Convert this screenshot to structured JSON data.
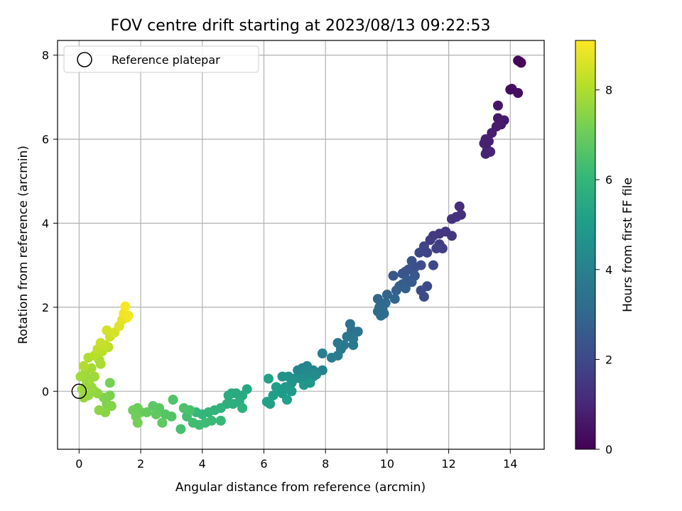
{
  "chart_data": {
    "type": "scatter",
    "title": "FOV centre drift starting at 2023/08/13 09:22:53",
    "xlabel": "Angular distance from reference (arcmin)",
    "ylabel": "Rotation from reference (arcmin)",
    "xlim": [
      -0.7,
      15.1
    ],
    "ylim": [
      -1.38,
      8.35
    ],
    "xticks": [
      0,
      2,
      4,
      6,
      8,
      10,
      12,
      14
    ],
    "yticks": [
      0,
      2,
      4,
      6,
      8
    ],
    "grid": true,
    "legend": {
      "placement": "upper-left",
      "entries": [
        "Reference platepar"
      ]
    },
    "reference_point": {
      "x": 0,
      "y": 0
    },
    "colorbar": {
      "label": "Hours from first FF file",
      "range": [
        0,
        9.1
      ],
      "ticks": [
        0,
        2,
        4,
        6,
        8
      ],
      "colormap": "viridis"
    },
    "points": [
      {
        "x": 14.3,
        "y": 7.85,
        "h": 0.1
      },
      {
        "x": 14.25,
        "y": 7.87,
        "h": 0.12
      },
      {
        "x": 14.35,
        "y": 7.82,
        "h": 0.15
      },
      {
        "x": 14.05,
        "y": 7.2,
        "h": 0.3
      },
      {
        "x": 14.0,
        "y": 7.18,
        "h": 0.32
      },
      {
        "x": 14.25,
        "y": 7.1,
        "h": 0.35
      },
      {
        "x": 13.6,
        "y": 6.8,
        "h": 0.5
      },
      {
        "x": 13.6,
        "y": 6.5,
        "h": 0.6
      },
      {
        "x": 13.8,
        "y": 6.45,
        "h": 0.62
      },
      {
        "x": 13.7,
        "y": 6.35,
        "h": 0.65
      },
      {
        "x": 13.55,
        "y": 6.3,
        "h": 0.7
      },
      {
        "x": 13.4,
        "y": 6.15,
        "h": 0.75
      },
      {
        "x": 13.2,
        "y": 6.0,
        "h": 0.8
      },
      {
        "x": 13.3,
        "y": 5.95,
        "h": 0.82
      },
      {
        "x": 13.15,
        "y": 5.9,
        "h": 0.85
      },
      {
        "x": 13.25,
        "y": 5.75,
        "h": 0.88
      },
      {
        "x": 13.2,
        "y": 5.65,
        "h": 0.9
      },
      {
        "x": 13.35,
        "y": 5.7,
        "h": 0.92
      },
      {
        "x": 12.35,
        "y": 4.4,
        "h": 1.2
      },
      {
        "x": 12.4,
        "y": 4.2,
        "h": 1.22
      },
      {
        "x": 12.25,
        "y": 4.15,
        "h": 1.25
      },
      {
        "x": 12.1,
        "y": 4.1,
        "h": 1.3
      },
      {
        "x": 11.9,
        "y": 3.8,
        "h": 1.4
      },
      {
        "x": 11.7,
        "y": 3.75,
        "h": 1.45
      },
      {
        "x": 12.1,
        "y": 3.7,
        "h": 1.5
      },
      {
        "x": 11.5,
        "y": 3.7,
        "h": 1.55
      },
      {
        "x": 11.4,
        "y": 3.6,
        "h": 1.6
      },
      {
        "x": 11.7,
        "y": 3.5,
        "h": 1.65
      },
      {
        "x": 11.8,
        "y": 3.4,
        "h": 1.7
      },
      {
        "x": 11.6,
        "y": 3.4,
        "h": 1.75
      },
      {
        "x": 11.2,
        "y": 3.45,
        "h": 1.8
      },
      {
        "x": 11.3,
        "y": 3.3,
        "h": 1.85
      },
      {
        "x": 11.05,
        "y": 3.3,
        "h": 1.9
      },
      {
        "x": 11.5,
        "y": 3.0,
        "h": 1.95
      },
      {
        "x": 11.3,
        "y": 2.5,
        "h": 2.0
      },
      {
        "x": 11.1,
        "y": 2.4,
        "h": 2.05
      },
      {
        "x": 11.2,
        "y": 2.25,
        "h": 2.1
      },
      {
        "x": 11.1,
        "y": 3.0,
        "h": 2.15
      },
      {
        "x": 10.9,
        "y": 2.95,
        "h": 2.2
      },
      {
        "x": 10.8,
        "y": 3.1,
        "h": 2.25
      },
      {
        "x": 10.7,
        "y": 2.9,
        "h": 2.3
      },
      {
        "x": 10.6,
        "y": 2.85,
        "h": 2.35
      },
      {
        "x": 10.5,
        "y": 2.8,
        "h": 2.4
      },
      {
        "x": 10.9,
        "y": 2.75,
        "h": 2.45
      },
      {
        "x": 10.2,
        "y": 2.75,
        "h": 2.5
      },
      {
        "x": 10.65,
        "y": 2.65,
        "h": 2.55
      },
      {
        "x": 10.8,
        "y": 2.6,
        "h": 2.6
      },
      {
        "x": 10.5,
        "y": 2.55,
        "h": 2.65
      },
      {
        "x": 10.4,
        "y": 2.5,
        "h": 2.7
      },
      {
        "x": 10.6,
        "y": 2.45,
        "h": 2.75
      },
      {
        "x": 10.3,
        "y": 2.4,
        "h": 2.8
      },
      {
        "x": 10.0,
        "y": 2.3,
        "h": 2.9
      },
      {
        "x": 10.25,
        "y": 2.2,
        "h": 2.95
      },
      {
        "x": 9.7,
        "y": 2.2,
        "h": 3.0
      },
      {
        "x": 9.8,
        "y": 2.1,
        "h": 3.05
      },
      {
        "x": 9.95,
        "y": 2.1,
        "h": 3.08
      },
      {
        "x": 9.75,
        "y": 2.0,
        "h": 3.1
      },
      {
        "x": 9.85,
        "y": 1.95,
        "h": 3.12
      },
      {
        "x": 9.7,
        "y": 1.9,
        "h": 3.15
      },
      {
        "x": 9.9,
        "y": 1.85,
        "h": 3.18
      },
      {
        "x": 9.8,
        "y": 1.8,
        "h": 3.2
      },
      {
        "x": 8.8,
        "y": 1.6,
        "h": 3.4
      },
      {
        "x": 8.85,
        "y": 1.45,
        "h": 3.45
      },
      {
        "x": 9.05,
        "y": 1.42,
        "h": 3.5
      },
      {
        "x": 8.7,
        "y": 1.3,
        "h": 3.55
      },
      {
        "x": 8.9,
        "y": 1.25,
        "h": 3.6
      },
      {
        "x": 8.4,
        "y": 1.15,
        "h": 3.65
      },
      {
        "x": 8.6,
        "y": 1.1,
        "h": 3.7
      },
      {
        "x": 8.9,
        "y": 1.1,
        "h": 3.72
      },
      {
        "x": 8.5,
        "y": 1.0,
        "h": 3.75
      },
      {
        "x": 8.4,
        "y": 0.85,
        "h": 3.8
      },
      {
        "x": 8.2,
        "y": 0.8,
        "h": 3.85
      },
      {
        "x": 7.9,
        "y": 0.9,
        "h": 3.9
      },
      {
        "x": 7.9,
        "y": 0.5,
        "h": 4.0
      },
      {
        "x": 7.6,
        "y": 0.5,
        "h": 4.05
      },
      {
        "x": 7.4,
        "y": 0.6,
        "h": 4.1
      },
      {
        "x": 7.25,
        "y": 0.55,
        "h": 4.15
      },
      {
        "x": 7.1,
        "y": 0.5,
        "h": 4.2
      },
      {
        "x": 7.3,
        "y": 0.45,
        "h": 4.25
      },
      {
        "x": 7.5,
        "y": 0.45,
        "h": 4.3
      },
      {
        "x": 7.7,
        "y": 0.4,
        "h": 4.35
      },
      {
        "x": 7.6,
        "y": 0.35,
        "h": 4.4
      },
      {
        "x": 7.4,
        "y": 0.3,
        "h": 4.45
      },
      {
        "x": 7.2,
        "y": 0.3,
        "h": 4.5
      },
      {
        "x": 7.0,
        "y": 0.3,
        "h": 4.55
      },
      {
        "x": 6.8,
        "y": 0.35,
        "h": 4.6
      },
      {
        "x": 6.6,
        "y": 0.35,
        "h": 4.65
      },
      {
        "x": 6.9,
        "y": 0.2,
        "h": 4.7
      },
      {
        "x": 7.5,
        "y": 0.2,
        "h": 4.75
      },
      {
        "x": 7.3,
        "y": 0.15,
        "h": 4.8
      },
      {
        "x": 6.7,
        "y": 0.1,
        "h": 4.85
      },
      {
        "x": 6.5,
        "y": 0.05,
        "h": 4.9
      },
      {
        "x": 6.9,
        "y": 0.0,
        "h": 4.95
      },
      {
        "x": 6.6,
        "y": -0.05,
        "h": 5.0
      },
      {
        "x": 6.4,
        "y": 0.1,
        "h": 5.05
      },
      {
        "x": 6.3,
        "y": -0.1,
        "h": 5.1
      },
      {
        "x": 6.75,
        "y": -0.2,
        "h": 5.12
      },
      {
        "x": 6.2,
        "y": -0.3,
        "h": 5.15
      },
      {
        "x": 6.1,
        "y": -0.25,
        "h": 5.18
      },
      {
        "x": 6.15,
        "y": 0.3,
        "h": 5.2
      },
      {
        "x": 5.45,
        "y": 0.05,
        "h": 5.4
      },
      {
        "x": 5.3,
        "y": -0.1,
        "h": 5.45
      },
      {
        "x": 5.1,
        "y": -0.05,
        "h": 5.5
      },
      {
        "x": 4.95,
        "y": -0.05,
        "h": 5.55
      },
      {
        "x": 4.85,
        "y": -0.1,
        "h": 5.6
      },
      {
        "x": 5.2,
        "y": -0.25,
        "h": 5.65
      },
      {
        "x": 5.0,
        "y": -0.3,
        "h": 5.7
      },
      {
        "x": 4.8,
        "y": -0.3,
        "h": 5.75
      },
      {
        "x": 5.3,
        "y": -0.4,
        "h": 5.8
      },
      {
        "x": 4.6,
        "y": -0.4,
        "h": 5.85
      },
      {
        "x": 4.4,
        "y": -0.45,
        "h": 5.9
      },
      {
        "x": 4.2,
        "y": -0.5,
        "h": 5.95
      },
      {
        "x": 4.0,
        "y": -0.55,
        "h": 6.0
      },
      {
        "x": 3.8,
        "y": -0.5,
        "h": 6.05
      },
      {
        "x": 4.6,
        "y": -0.7,
        "h": 6.1
      },
      {
        "x": 4.3,
        "y": -0.7,
        "h": 6.15
      },
      {
        "x": 4.1,
        "y": -0.75,
        "h": 6.2
      },
      {
        "x": 3.9,
        "y": -0.8,
        "h": 6.25
      },
      {
        "x": 3.7,
        "y": -0.75,
        "h": 6.3
      },
      {
        "x": 3.5,
        "y": -0.6,
        "h": 6.35
      },
      {
        "x": 3.3,
        "y": -0.9,
        "h": 6.4
      },
      {
        "x": 3.6,
        "y": -0.45,
        "h": 6.45
      },
      {
        "x": 3.4,
        "y": -0.4,
        "h": 6.5
      },
      {
        "x": 3.05,
        "y": -0.2,
        "h": 6.55
      },
      {
        "x": 3.0,
        "y": -0.6,
        "h": 6.6
      },
      {
        "x": 2.8,
        "y": -0.55,
        "h": 6.65
      },
      {
        "x": 2.6,
        "y": -0.4,
        "h": 6.7
      },
      {
        "x": 2.4,
        "y": -0.35,
        "h": 6.75
      },
      {
        "x": 2.7,
        "y": -0.75,
        "h": 6.8
      },
      {
        "x": 2.5,
        "y": -0.55,
        "h": 6.85
      },
      {
        "x": 2.2,
        "y": -0.5,
        "h": 6.9
      },
      {
        "x": 2.0,
        "y": -0.5,
        "h": 6.95
      },
      {
        "x": 1.9,
        "y": -0.4,
        "h": 7.0
      },
      {
        "x": 1.75,
        "y": -0.45,
        "h": 7.05
      },
      {
        "x": 1.85,
        "y": -0.6,
        "h": 7.1
      },
      {
        "x": 1.9,
        "y": -0.75,
        "h": 7.15
      },
      {
        "x": 1.0,
        "y": 0.2,
        "h": 7.2
      },
      {
        "x": 1.0,
        "y": -0.1,
        "h": 7.25
      },
      {
        "x": 0.8,
        "y": -0.15,
        "h": 7.3
      },
      {
        "x": 0.9,
        "y": -0.3,
        "h": 7.35
      },
      {
        "x": 1.05,
        "y": -0.35,
        "h": 7.4
      },
      {
        "x": 0.85,
        "y": -0.5,
        "h": 7.45
      },
      {
        "x": 0.65,
        "y": -0.45,
        "h": 7.5
      },
      {
        "x": 0.6,
        "y": -0.05,
        "h": 7.55
      },
      {
        "x": 0.5,
        "y": 0.0,
        "h": 7.6
      },
      {
        "x": 0.3,
        "y": -0.1,
        "h": 7.62
      },
      {
        "x": 0.15,
        "y": -0.15,
        "h": 7.65
      },
      {
        "x": 0.4,
        "y": 0.1,
        "h": 7.68
      },
      {
        "x": 0.25,
        "y": 0.2,
        "h": 7.7
      },
      {
        "x": 0.1,
        "y": 0.05,
        "h": 7.72
      },
      {
        "x": 0.35,
        "y": 0.3,
        "h": 7.75
      },
      {
        "x": 0.5,
        "y": 0.35,
        "h": 7.78
      },
      {
        "x": 0.2,
        "y": 0.45,
        "h": 7.8
      },
      {
        "x": 0.05,
        "y": 0.35,
        "h": 7.82
      },
      {
        "x": 0.4,
        "y": 0.55,
        "h": 7.85
      },
      {
        "x": 0.7,
        "y": 0.65,
        "h": 7.9
      },
      {
        "x": 0.65,
        "y": 0.75,
        "h": 7.95
      },
      {
        "x": 0.3,
        "y": 0.8,
        "h": 8.0
      },
      {
        "x": 0.15,
        "y": 0.6,
        "h": 8.05
      },
      {
        "x": 0.5,
        "y": 0.85,
        "h": 8.1
      },
      {
        "x": 0.75,
        "y": 0.95,
        "h": 8.15
      },
      {
        "x": 0.95,
        "y": 1.05,
        "h": 8.2
      },
      {
        "x": 0.6,
        "y": 1.0,
        "h": 8.25
      },
      {
        "x": 0.85,
        "y": 1.1,
        "h": 8.3
      },
      {
        "x": 0.7,
        "y": 1.15,
        "h": 8.35
      },
      {
        "x": 1.0,
        "y": 1.3,
        "h": 8.45
      },
      {
        "x": 0.9,
        "y": 1.45,
        "h": 8.5
      },
      {
        "x": 1.15,
        "y": 1.4,
        "h": 8.55
      },
      {
        "x": 1.3,
        "y": 1.55,
        "h": 8.65
      },
      {
        "x": 1.4,
        "y": 1.7,
        "h": 8.75
      },
      {
        "x": 1.55,
        "y": 1.75,
        "h": 8.85
      },
      {
        "x": 1.45,
        "y": 1.85,
        "h": 8.9
      },
      {
        "x": 1.6,
        "y": 1.8,
        "h": 8.95
      },
      {
        "x": 1.5,
        "y": 2.02,
        "h": 9.05
      }
    ]
  }
}
